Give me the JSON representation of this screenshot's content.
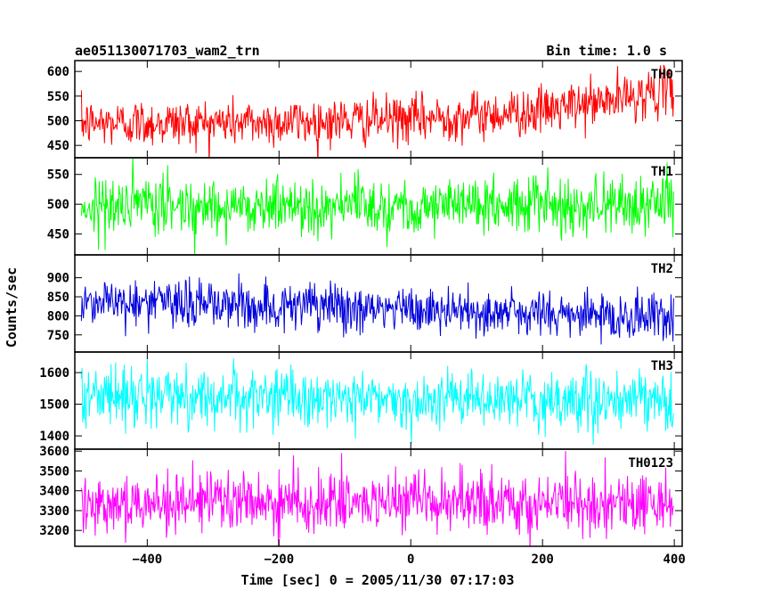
{
  "header": {
    "left_title": "ae051130071703_wam2_trn",
    "right_title": "Bin time: 1.0 s"
  },
  "chart_data": {
    "type": "line",
    "xlabel": "Time [sec] 0 = 2005/11/30 07:17:03",
    "ylabel": "Counts/sec",
    "xlim": [
      -510,
      412
    ],
    "x_range": [
      -500,
      399
    ],
    "x_ticks": [
      -400,
      -200,
      0,
      200,
      400
    ],
    "x_tick_labels": [
      "−400",
      "−200",
      "0",
      "200",
      "400"
    ],
    "panels": [
      {
        "name": "TH0",
        "color": "#ff0000",
        "ylim": [
          425,
          622
        ],
        "y_ticks": [
          450,
          500,
          550,
          600
        ],
        "y_tick_labels": [
          "450",
          "500",
          "550",
          "600"
        ],
        "trend": [
          [
            -500,
            495
          ],
          [
            -200,
            497
          ],
          [
            0,
            503
          ],
          [
            200,
            520
          ],
          [
            300,
            540
          ],
          [
            399,
            565
          ]
        ],
        "noise_sd": 24
      },
      {
        "name": "TH1",
        "color": "#00ff00",
        "ylim": [
          415,
          578
        ],
        "y_ticks": [
          450,
          500,
          550
        ],
        "y_tick_labels": [
          "450",
          "500",
          "550"
        ],
        "trend": [
          [
            -500,
            497
          ],
          [
            0,
            498
          ],
          [
            399,
            500
          ]
        ],
        "noise_sd": 24
      },
      {
        "name": "TH2",
        "color": "#0000dd",
        "ylim": [
          705,
          960
        ],
        "y_ticks": [
          750,
          800,
          850,
          900
        ],
        "y_tick_labels": [
          "750",
          "800",
          "850",
          "900"
        ],
        "trend": [
          [
            -500,
            840
          ],
          [
            -200,
            825
          ],
          [
            0,
            815
          ],
          [
            200,
            805
          ],
          [
            399,
            795
          ]
        ],
        "noise_sd": 32
      },
      {
        "name": "TH3",
        "color": "#00ffff",
        "ylim": [
          1358,
          1665
        ],
        "y_ticks": [
          1400,
          1500,
          1600
        ],
        "y_tick_labels": [
          "1400",
          "1500",
          "1600"
        ],
        "trend": [
          [
            -500,
            1530
          ],
          [
            0,
            1515
          ],
          [
            399,
            1505
          ]
        ],
        "noise_sd": 45
      },
      {
        "name": "TH0123",
        "color": "#ff00ff",
        "ylim": [
          3120,
          3610
        ],
        "y_ticks": [
          3200,
          3300,
          3400,
          3500,
          3600
        ],
        "y_tick_labels": [
          "3200",
          "3300",
          "3400",
          "3500",
          "3600"
        ],
        "trend": [
          [
            -500,
            3345
          ],
          [
            0,
            3335
          ],
          [
            399,
            3340
          ]
        ],
        "noise_sd": 75
      }
    ]
  }
}
